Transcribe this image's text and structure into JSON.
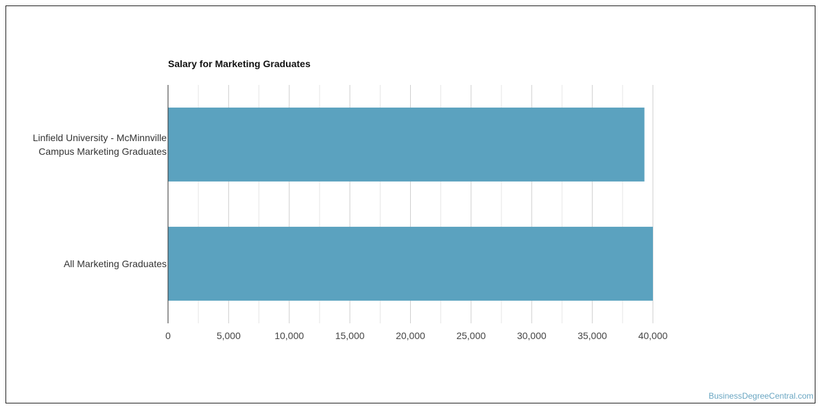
{
  "chart_data": {
    "type": "bar",
    "orientation": "horizontal",
    "title": "Salary for Marketing Graduates",
    "categories": [
      [
        "Linfield University - McMinnville",
        "Campus Marketing Graduates"
      ],
      [
        "All Marketing Graduates"
      ]
    ],
    "values": [
      39300,
      40000
    ],
    "xlim": [
      0,
      40000
    ],
    "xticks": [
      0,
      5000,
      10000,
      15000,
      20000,
      25000,
      30000,
      35000,
      40000
    ],
    "xtick_labels": [
      "0",
      "5,000",
      "10,000",
      "15,000",
      "20,000",
      "25,000",
      "30,000",
      "35,000",
      "40,000"
    ],
    "grid": true,
    "bar_color": "#5ba2bf"
  },
  "watermark": "BusinessDegreeCentral.com"
}
